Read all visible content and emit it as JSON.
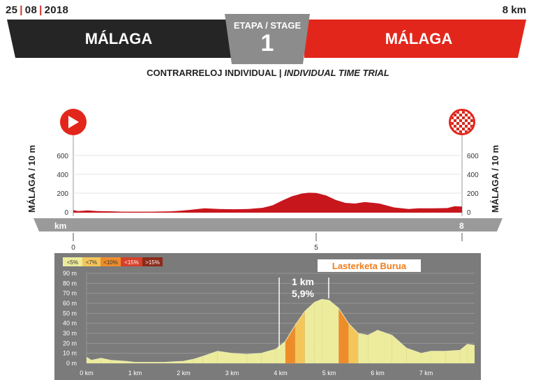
{
  "header": {
    "date_day": "25",
    "date_month": "08",
    "date_year": "2018",
    "distance": "8 km",
    "start_city": "MÁLAGA",
    "finish_city": "MÁLAGA",
    "stage_label": "ETAPA / STAGE",
    "stage_number": "1",
    "subtitle_es": "CONTRARRELOJ INDIVIDUAL",
    "subtitle_sep": "|",
    "subtitle_en": "INDIVIDUAL TIME TRIAL"
  },
  "profile_overview": {
    "axis_left_label": "MÁLAGA / 10 m",
    "axis_right_label": "MÁLAGA / 10 m",
    "y_ticks": [
      "0",
      "200",
      "400",
      "600"
    ],
    "km_label": "km",
    "km_end": "8",
    "km_ticks": [
      "0",
      "5"
    ],
    "colors": {
      "profile": "#c8161d",
      "bar": "#9a9a9a"
    }
  },
  "detail_profile": {
    "legend": [
      "<5%",
      "<7%",
      "<10%",
      "<15%",
      ">15%"
    ],
    "legend_colors": [
      "#ecec9c",
      "#f4c65a",
      "#ef8c2a",
      "#d6402a",
      "#8b2a1a"
    ],
    "sponsor": "Lasterketa Burua",
    "climb_distance": "1 km",
    "climb_gradient": "5,9%",
    "y_ticks": [
      "0 m",
      "10 m",
      "20 m",
      "30 m",
      "40 m",
      "50 m",
      "60 m",
      "70 m",
      "80 m",
      "90 m"
    ],
    "x_ticks": [
      "0 km",
      "1 km",
      "2 km",
      "3 km",
      "4 km",
      "5 km",
      "6 km",
      "7 km"
    ],
    "background_color": "#7b7b7b"
  },
  "chart_data": {
    "type": "area",
    "x": [
      0,
      0.1,
      0.3,
      0.5,
      0.8,
      1.0,
      1.3,
      1.6,
      2.0,
      2.2,
      2.4,
      2.7,
      3.0,
      3.3,
      3.6,
      3.9,
      4.1,
      4.3,
      4.5,
      4.7,
      4.85,
      5.0,
      5.2,
      5.4,
      5.6,
      5.8,
      6.0,
      6.3,
      6.6,
      6.9,
      7.1,
      7.4,
      7.7,
      7.85,
      8.0
    ],
    "series": [
      {
        "values": [
          6,
          3,
          5,
          3,
          2,
          1,
          1,
          1,
          2,
          4,
          7,
          12,
          10,
          9,
          10,
          14,
          22,
          38,
          52,
          61,
          64,
          63,
          55,
          40,
          30,
          28,
          33,
          28,
          15,
          10,
          12,
          12,
          13,
          19,
          18
        ]
      }
    ],
    "xlabel": "",
    "ylabel": "",
    "xlim": [
      0,
      8
    ],
    "ylim": [
      0,
      90
    ],
    "grid": true
  }
}
